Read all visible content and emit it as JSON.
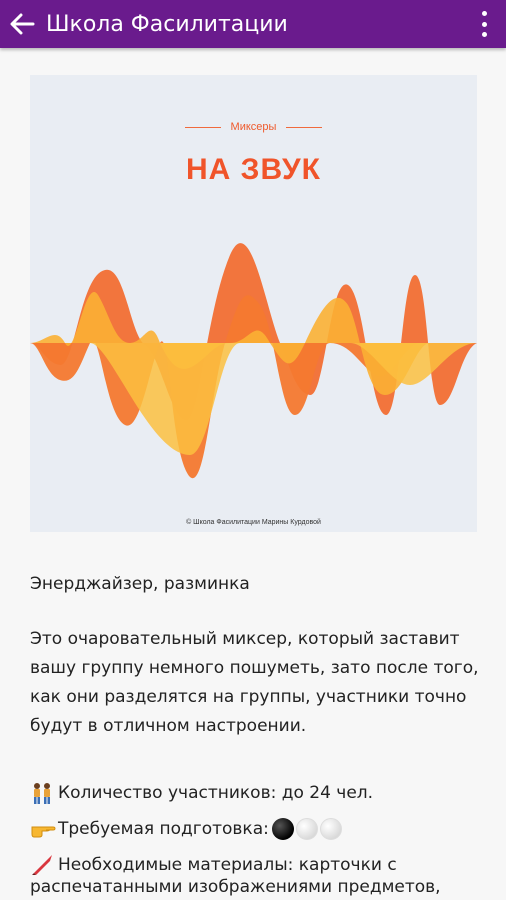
{
  "appbar": {
    "title": "Школа Фасилитации",
    "back_icon": "arrow-left-icon",
    "menu_icon": "more-vertical-icon"
  },
  "cover": {
    "subtitle": "Миксеры",
    "title": "НА ЗВУК",
    "credit": "© Школа Фасилитации Марины Курдовой",
    "colors": {
      "background": "#e9edf3",
      "accent": "#f0542a",
      "wave_orange": "#f36a2c",
      "wave_yellow": "#fbb034"
    }
  },
  "content": {
    "category": "Энерджайзер, разминка",
    "description": "Это очаровательный миксер, который заставит вашу группу немного пошуметь, зато после того, как они разделятся на группы, участники точно будут в отличном настроении.",
    "facts": [
      {
        "icon": "people-icon",
        "text": "Количество участников: до 24 чел."
      },
      {
        "icon": "pointing-hand-icon",
        "text": "Требуемая подготовка:",
        "level": {
          "filled": 1,
          "total": 3
        }
      },
      {
        "icon": "crayon-icon",
        "text": "Необходимые материалы: карточки с",
        "continuation": "распечатанными изображениями предметов,"
      }
    ]
  }
}
